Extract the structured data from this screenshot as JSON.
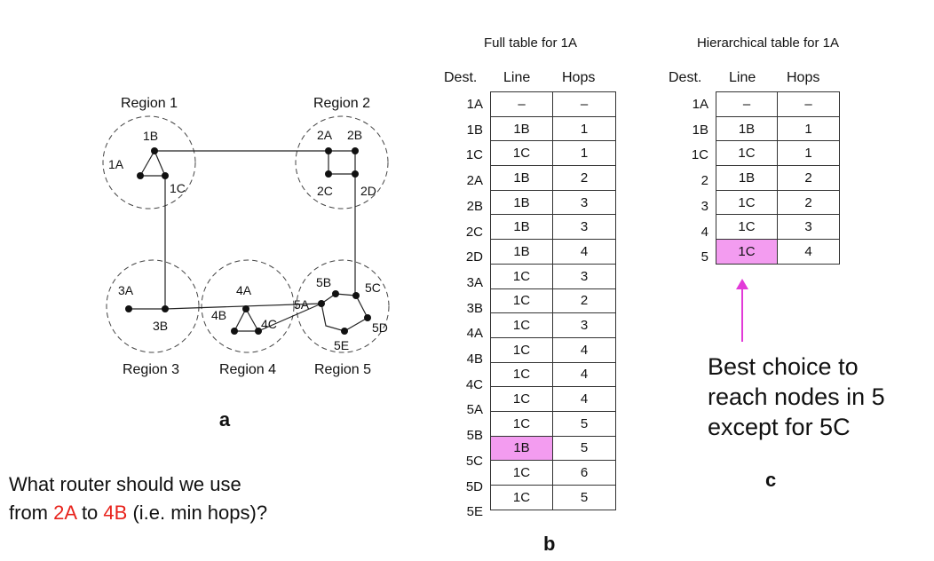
{
  "diagram": {
    "regions": [
      "Region 1",
      "Region 2",
      "Region 3",
      "Region 4",
      "Region 5"
    ],
    "nodes": {
      "r1": [
        "1A",
        "1B",
        "1C"
      ],
      "r2": [
        "2A",
        "2B",
        "2C",
        "2D"
      ],
      "r3": [
        "3A",
        "3B"
      ],
      "r4": [
        "4A",
        "4B",
        "4C"
      ],
      "r5": [
        "5A",
        "5B",
        "5C",
        "5D",
        "5E"
      ]
    },
    "panel_label": "a"
  },
  "question": {
    "line1": "What router should we use",
    "line2_prefix": "from ",
    "from_node": "2A",
    "to_word": " to ",
    "to_node": "4B",
    "line2_suffix": " (i.e. min hops)?"
  },
  "full_table": {
    "caption": "Full table for 1A",
    "headers": {
      "dest": "Dest.",
      "line": "Line",
      "hops": "Hops"
    },
    "rows": [
      {
        "dest": "1A",
        "line": "–",
        "hops": "–"
      },
      {
        "dest": "1B",
        "line": "1B",
        "hops": "1"
      },
      {
        "dest": "1C",
        "line": "1C",
        "hops": "1"
      },
      {
        "dest": "2A",
        "line": "1B",
        "hops": "2"
      },
      {
        "dest": "2B",
        "line": "1B",
        "hops": "3"
      },
      {
        "dest": "2C",
        "line": "1B",
        "hops": "3"
      },
      {
        "dest": "2D",
        "line": "1B",
        "hops": "4"
      },
      {
        "dest": "3A",
        "line": "1C",
        "hops": "3"
      },
      {
        "dest": "3B",
        "line": "1C",
        "hops": "2"
      },
      {
        "dest": "4A",
        "line": "1C",
        "hops": "3"
      },
      {
        "dest": "4B",
        "line": "1C",
        "hops": "4"
      },
      {
        "dest": "4C",
        "line": "1C",
        "hops": "4"
      },
      {
        "dest": "5A",
        "line": "1C",
        "hops": "4"
      },
      {
        "dest": "5B",
        "line": "1C",
        "hops": "5"
      },
      {
        "dest": "5C",
        "line": "1B",
        "hops": "5",
        "highlight": true
      },
      {
        "dest": "5D",
        "line": "1C",
        "hops": "6"
      },
      {
        "dest": "5E",
        "line": "1C",
        "hops": "5"
      }
    ],
    "panel_label": "b"
  },
  "hier_table": {
    "caption": "Hierarchical table for 1A",
    "headers": {
      "dest": "Dest.",
      "line": "Line",
      "hops": "Hops"
    },
    "rows": [
      {
        "dest": "1A",
        "line": "–",
        "hops": "–"
      },
      {
        "dest": "1B",
        "line": "1B",
        "hops": "1"
      },
      {
        "dest": "1C",
        "line": "1C",
        "hops": "1"
      },
      {
        "dest": "2",
        "line": "1B",
        "hops": "2"
      },
      {
        "dest": "3",
        "line": "1C",
        "hops": "2"
      },
      {
        "dest": "4",
        "line": "1C",
        "hops": "3"
      },
      {
        "dest": "5",
        "line": "1C",
        "hops": "4",
        "highlight": true
      }
    ],
    "panel_label": "c"
  },
  "note": {
    "lines": [
      "Best choice to",
      "reach nodes in 5",
      "except for 5C"
    ]
  },
  "colors": {
    "highlight": "#f39cf0",
    "arrow": "#e23ad8",
    "accent_red": "#e8231c"
  }
}
